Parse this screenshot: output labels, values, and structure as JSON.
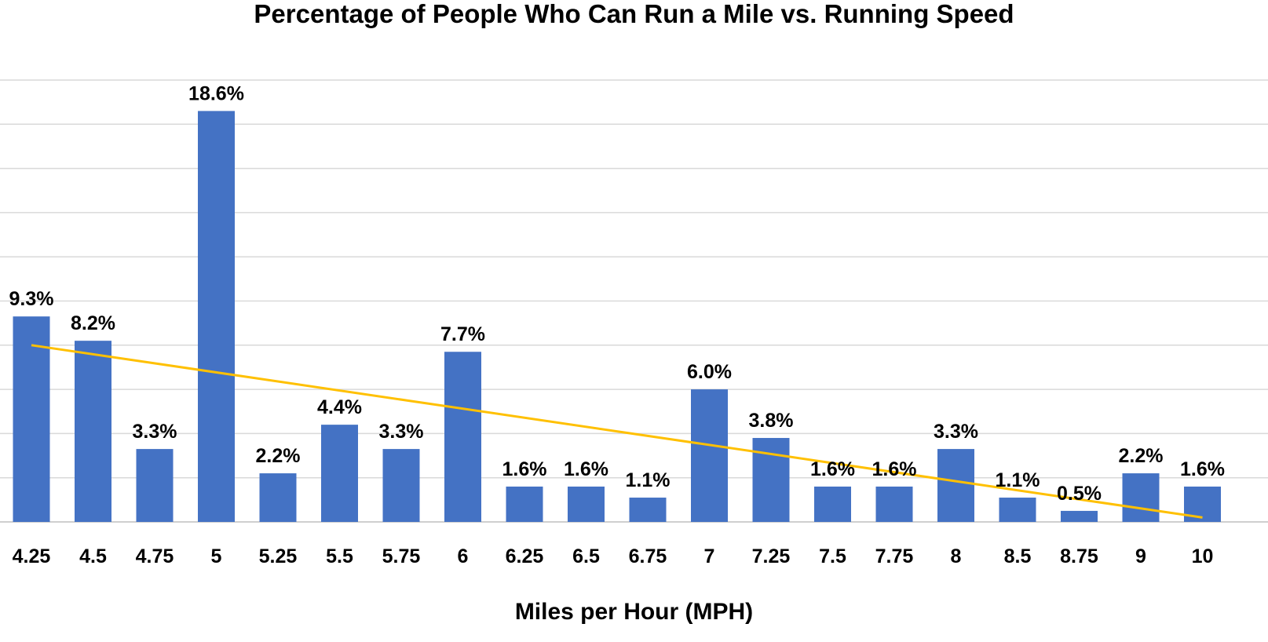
{
  "chart_data": {
    "type": "bar",
    "title": "Percentage of People Who Can Run a Mile vs. Running Speed",
    "xlabel": "Miles per Hour (MPH)",
    "ylabel": "",
    "categories": [
      "4.25",
      "4.5",
      "4.75",
      "5",
      "5.25",
      "5.5",
      "5.75",
      "6",
      "6.25",
      "6.5",
      "6.75",
      "7",
      "7.25",
      "7.5",
      "7.75",
      "8",
      "8.5",
      "8.75",
      "9",
      "10"
    ],
    "values": [
      9.3,
      8.2,
      3.3,
      18.6,
      2.2,
      4.4,
      3.3,
      7.7,
      1.6,
      1.6,
      1.1,
      6.0,
      3.8,
      1.6,
      1.6,
      3.3,
      1.1,
      0.5,
      2.2,
      1.6
    ],
    "data_labels": [
      "9.3%",
      "8.2%",
      "3.3%",
      "18.6%",
      "2.2%",
      "4.4%",
      "3.3%",
      "7.7%",
      "1.6%",
      "1.6%",
      "1.1%",
      "6.0%",
      "3.8%",
      "1.6%",
      "1.6%",
      "3.3%",
      "1.1%",
      "0.5%",
      "2.2%",
      "1.6%"
    ],
    "ylim": [
      0,
      20
    ],
    "grid": true,
    "y_tick_labels_shown": false,
    "trendline": {
      "type": "linear",
      "start_value": 8.0,
      "end_value": 0.2
    },
    "colors": {
      "bar": "#4472C4",
      "trendline": "#FFC000",
      "grid": "#D9D9D9"
    }
  }
}
